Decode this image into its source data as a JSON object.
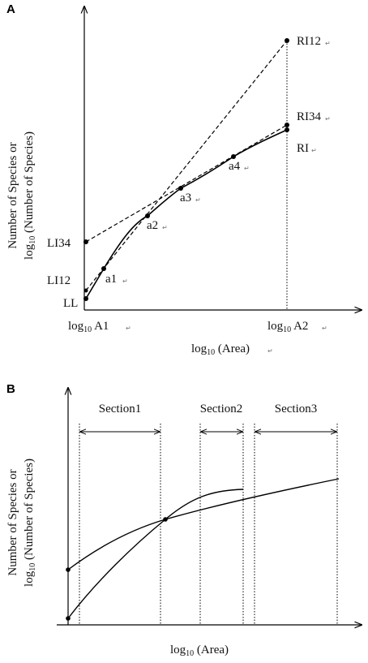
{
  "panelA": {
    "letter": "A",
    "ylabel_line1": "Number of Species or",
    "ylabel_line2_prefix": "log",
    "ylabel_line2_sub": "10",
    "ylabel_line2_rest": " (Number of Species)",
    "xlabel_prefix": "log",
    "xlabel_sub": "10",
    "xlabel_rest": " (Area)",
    "x_ticks": [
      {
        "prefix": "log",
        "sub": "10",
        "rest": " A1"
      },
      {
        "prefix": "log",
        "sub": "10",
        "rest": " A2"
      }
    ],
    "left_labels": [
      "LI34",
      "LI12",
      "LL"
    ],
    "right_labels": [
      "RI12",
      "RI34",
      "RI"
    ],
    "point_labels": [
      "a1",
      "a2",
      "a3",
      "a4"
    ],
    "mark_glyph": "↵"
  },
  "panelB": {
    "letter": "B",
    "ylabel_line1": "Number of Species or",
    "ylabel_line2_prefix": "log",
    "ylabel_line2_sub": "10",
    "ylabel_line2_rest": " (Number of Species)",
    "xlabel_prefix": "log",
    "xlabel_sub": "10",
    "xlabel_rest": " (Area)",
    "sections": [
      "Section1",
      "Section2",
      "Section3"
    ]
  }
}
